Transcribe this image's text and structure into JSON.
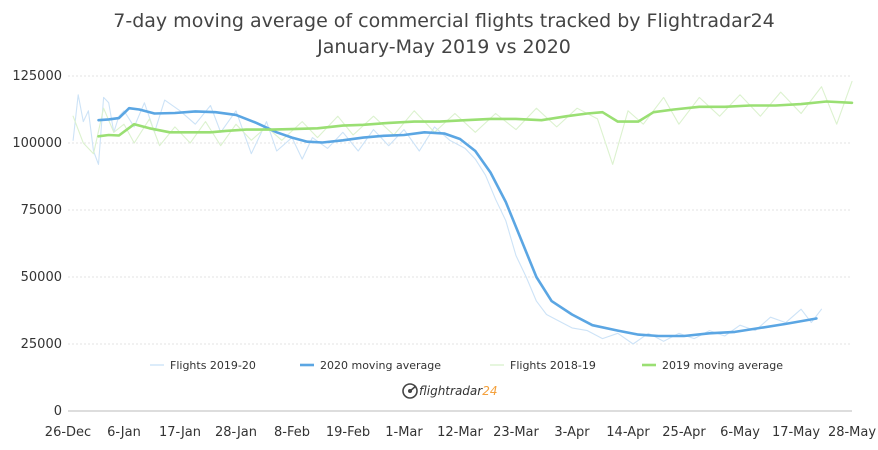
{
  "chart_data": {
    "type": "line",
    "title": "7-day moving average of commercial flights tracked by Flightradar24",
    "subtitle": "January-May 2019 vs 2020",
    "xlabel": "",
    "ylabel": "",
    "ylim": [
      0,
      125000
    ],
    "yticks": [
      0,
      25000,
      50000,
      75000,
      100000,
      125000
    ],
    "ytick_labels": [
      "0",
      "25000",
      "50000",
      "75000",
      "100000",
      "125000"
    ],
    "xlim": [
      "2019-12-26",
      "2020-05-28"
    ],
    "xtick_labels": [
      "26-Dec",
      "6-Jan",
      "17-Jan",
      "28-Jan",
      "8-Feb",
      "19-Feb",
      "1-Mar",
      "12-Mar",
      "23-Mar",
      "3-Apr",
      "14-Apr",
      "25-Apr",
      "6-May",
      "17-May",
      "28-May"
    ],
    "grid": "horizontal",
    "legend_position": "bottom",
    "series": [
      {
        "name": "Flights 2019-20",
        "color": "#cde3f7",
        "style": "thin",
        "points": [
          [
            "2019-12-27",
            101000
          ],
          [
            "2019-12-28",
            118000
          ],
          [
            "2019-12-29",
            108000
          ],
          [
            "2019-12-30",
            112000
          ],
          [
            "2019-12-31",
            97000
          ],
          [
            "2020-01-01",
            92000
          ],
          [
            "2020-01-02",
            117000
          ],
          [
            "2020-01-03",
            115000
          ],
          [
            "2020-01-04",
            104000
          ],
          [
            "2020-01-05",
            110000
          ],
          [
            "2020-01-06",
            112000
          ],
          [
            "2020-01-08",
            106000
          ],
          [
            "2020-01-10",
            115000
          ],
          [
            "2020-01-12",
            104000
          ],
          [
            "2020-01-14",
            116000
          ],
          [
            "2020-01-17",
            112000
          ],
          [
            "2020-01-20",
            107000
          ],
          [
            "2020-01-23",
            114000
          ],
          [
            "2020-01-25",
            104000
          ],
          [
            "2020-01-28",
            112000
          ],
          [
            "2020-01-31",
            96000
          ],
          [
            "2020-02-03",
            108000
          ],
          [
            "2020-02-05",
            97000
          ],
          [
            "2020-02-08",
            102000
          ],
          [
            "2020-02-10",
            94000
          ],
          [
            "2020-02-12",
            102000
          ],
          [
            "2020-02-15",
            98000
          ],
          [
            "2020-02-18",
            104000
          ],
          [
            "2020-02-21",
            97000
          ],
          [
            "2020-02-24",
            105000
          ],
          [
            "2020-02-27",
            99000
          ],
          [
            "2020-03-01",
            105000
          ],
          [
            "2020-03-04",
            97000
          ],
          [
            "2020-03-07",
            106000
          ],
          [
            "2020-03-10",
            101000
          ],
          [
            "2020-03-13",
            98000
          ],
          [
            "2020-03-15",
            94000
          ],
          [
            "2020-03-17",
            88000
          ],
          [
            "2020-03-19",
            79000
          ],
          [
            "2020-03-21",
            71000
          ],
          [
            "2020-03-23",
            58000
          ],
          [
            "2020-03-25",
            50000
          ],
          [
            "2020-03-27",
            41000
          ],
          [
            "2020-03-29",
            36000
          ],
          [
            "2020-03-31",
            34000
          ],
          [
            "2020-04-03",
            31000
          ],
          [
            "2020-04-06",
            30000
          ],
          [
            "2020-04-09",
            27000
          ],
          [
            "2020-04-12",
            29000
          ],
          [
            "2020-04-15",
            25000
          ],
          [
            "2020-04-18",
            29000
          ],
          [
            "2020-04-21",
            26000
          ],
          [
            "2020-04-24",
            29000
          ],
          [
            "2020-04-27",
            27000
          ],
          [
            "2020-04-30",
            30000
          ],
          [
            "2020-05-03",
            28000
          ],
          [
            "2020-05-06",
            32000
          ],
          [
            "2020-05-09",
            30000
          ],
          [
            "2020-05-12",
            35000
          ],
          [
            "2020-05-15",
            33000
          ],
          [
            "2020-05-18",
            38000
          ],
          [
            "2020-05-20",
            33000
          ],
          [
            "2020-05-22",
            38000
          ]
        ]
      },
      {
        "name": "2020 moving average",
        "color": "#5ba6e3",
        "style": "thick",
        "points": [
          [
            "2020-01-01",
            108500
          ],
          [
            "2020-01-03",
            108800
          ],
          [
            "2020-01-05",
            109300
          ],
          [
            "2020-01-07",
            113000
          ],
          [
            "2020-01-09",
            112500
          ],
          [
            "2020-01-12",
            111000
          ],
          [
            "2020-01-16",
            111200
          ],
          [
            "2020-01-20",
            111800
          ],
          [
            "2020-01-24",
            111500
          ],
          [
            "2020-01-28",
            110500
          ],
          [
            "2020-02-01",
            107500
          ],
          [
            "2020-02-05",
            104000
          ],
          [
            "2020-02-08",
            102000
          ],
          [
            "2020-02-11",
            100500
          ],
          [
            "2020-02-14",
            100200
          ],
          [
            "2020-02-18",
            101000
          ],
          [
            "2020-02-22",
            102000
          ],
          [
            "2020-02-26",
            102700
          ],
          [
            "2020-03-01",
            103000
          ],
          [
            "2020-03-05",
            104000
          ],
          [
            "2020-03-09",
            103500
          ],
          [
            "2020-03-12",
            101500
          ],
          [
            "2020-03-15",
            97000
          ],
          [
            "2020-03-18",
            89000
          ],
          [
            "2020-03-21",
            78000
          ],
          [
            "2020-03-24",
            64000
          ],
          [
            "2020-03-27",
            50000
          ],
          [
            "2020-03-30",
            41000
          ],
          [
            "2020-04-03",
            36000
          ],
          [
            "2020-04-07",
            32000
          ],
          [
            "2020-04-12",
            30000
          ],
          [
            "2020-04-16",
            28500
          ],
          [
            "2020-04-20",
            28000
          ],
          [
            "2020-04-25",
            28000
          ],
          [
            "2020-04-30",
            29000
          ],
          [
            "2020-05-05",
            29500
          ],
          [
            "2020-05-10",
            31000
          ],
          [
            "2020-05-15",
            32500
          ],
          [
            "2020-05-21",
            34500
          ]
        ]
      },
      {
        "name": "Flights 2018-19",
        "color": "#dcf2cf",
        "style": "thin",
        "points": [
          [
            "2019-12-27",
            110000
          ],
          [
            "2019-12-29",
            100000
          ],
          [
            "2019-12-31",
            96000
          ],
          [
            "2020-01-02",
            113000
          ],
          [
            "2020-01-04",
            104000
          ],
          [
            "2020-01-06",
            107000
          ],
          [
            "2020-01-08",
            100000
          ],
          [
            "2020-01-11",
            109000
          ],
          [
            "2020-01-13",
            99000
          ],
          [
            "2020-01-16",
            106000
          ],
          [
            "2020-01-19",
            100000
          ],
          [
            "2020-01-22",
            108000
          ],
          [
            "2020-01-25",
            99000
          ],
          [
            "2020-01-28",
            107000
          ],
          [
            "2020-01-31",
            101000
          ],
          [
            "2020-02-03",
            106000
          ],
          [
            "2020-02-06",
            101000
          ],
          [
            "2020-02-10",
            108000
          ],
          [
            "2020-02-13",
            102000
          ],
          [
            "2020-02-17",
            110000
          ],
          [
            "2020-02-20",
            103000
          ],
          [
            "2020-02-24",
            110000
          ],
          [
            "2020-02-28",
            103000
          ],
          [
            "2020-03-03",
            112000
          ],
          [
            "2020-03-07",
            104000
          ],
          [
            "2020-03-11",
            111000
          ],
          [
            "2020-03-15",
            104000
          ],
          [
            "2020-03-19",
            111000
          ],
          [
            "2020-03-23",
            105000
          ],
          [
            "2020-03-27",
            113000
          ],
          [
            "2020-03-31",
            106000
          ],
          [
            "2020-04-04",
            113000
          ],
          [
            "2020-04-08",
            109000
          ],
          [
            "2020-04-11",
            92000
          ],
          [
            "2020-04-14",
            112000
          ],
          [
            "2020-04-17",
            107000
          ],
          [
            "2020-04-21",
            117000
          ],
          [
            "2020-04-24",
            107000
          ],
          [
            "2020-04-28",
            117000
          ],
          [
            "2020-05-02",
            110000
          ],
          [
            "2020-05-06",
            118000
          ],
          [
            "2020-05-10",
            110000
          ],
          [
            "2020-05-14",
            119000
          ],
          [
            "2020-05-18",
            111000
          ],
          [
            "2020-05-22",
            121000
          ],
          [
            "2020-05-25",
            107000
          ],
          [
            "2020-05-28",
            123000
          ]
        ]
      },
      {
        "name": "2019 moving average",
        "color": "#9adf73",
        "style": "thick",
        "points": [
          [
            "2020-01-01",
            102500
          ],
          [
            "2020-01-03",
            103000
          ],
          [
            "2020-01-05",
            102800
          ],
          [
            "2020-01-08",
            107000
          ],
          [
            "2020-01-11",
            105500
          ],
          [
            "2020-01-15",
            104000
          ],
          [
            "2020-01-19",
            104000
          ],
          [
            "2020-01-23",
            104000
          ],
          [
            "2020-01-26",
            104500
          ],
          [
            "2020-01-30",
            105000
          ],
          [
            "2020-02-04",
            105000
          ],
          [
            "2020-02-08",
            105200
          ],
          [
            "2020-02-13",
            105500
          ],
          [
            "2020-02-18",
            106500
          ],
          [
            "2020-02-22",
            106800
          ],
          [
            "2020-02-27",
            107500
          ],
          [
            "2020-03-03",
            108000
          ],
          [
            "2020-03-08",
            108000
          ],
          [
            "2020-03-13",
            108500
          ],
          [
            "2020-03-18",
            109000
          ],
          [
            "2020-03-23",
            109000
          ],
          [
            "2020-03-28",
            108500
          ],
          [
            "2020-04-02",
            110000
          ],
          [
            "2020-04-06",
            111000
          ],
          [
            "2020-04-09",
            111500
          ],
          [
            "2020-04-12",
            108000
          ],
          [
            "2020-04-16",
            108000
          ],
          [
            "2020-04-19",
            111500
          ],
          [
            "2020-04-23",
            112500
          ],
          [
            "2020-04-28",
            113500
          ],
          [
            "2020-05-03",
            113500
          ],
          [
            "2020-05-08",
            114000
          ],
          [
            "2020-05-13",
            114000
          ],
          [
            "2020-05-18",
            114500
          ],
          [
            "2020-05-23",
            115500
          ],
          [
            "2020-05-28",
            115000
          ]
        ]
      }
    ]
  },
  "branding": {
    "logo_text": "flightradar",
    "logo_suffix": "24",
    "logo_icon": "radar-icon",
    "logo_accent_color": "#f4a13d"
  }
}
